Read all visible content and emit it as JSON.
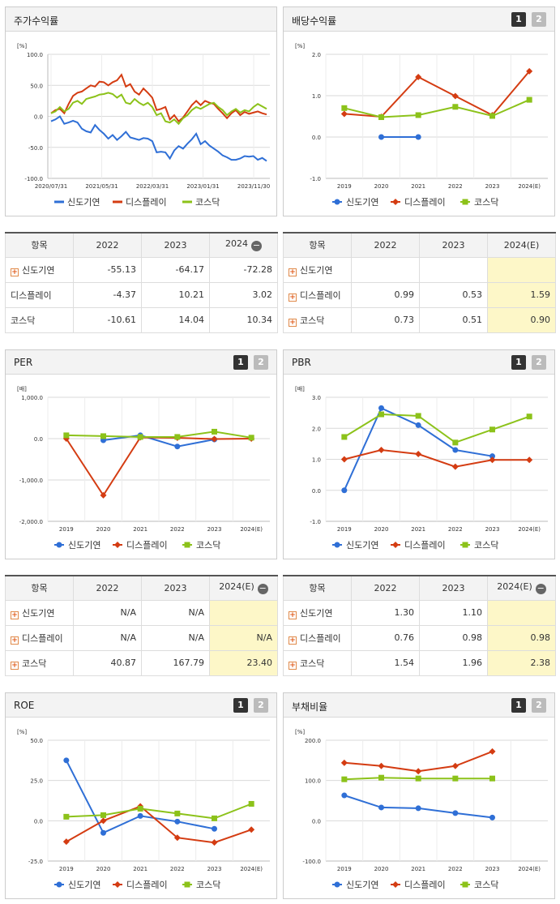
{
  "series_names": [
    "신도기연",
    "디스플레이",
    "코스닥"
  ],
  "colors": {
    "s0": "#2f6fd6",
    "s1": "#d43c12",
    "s2": "#8cc21a"
  },
  "panels": {
    "stock": {
      "title": "주가수익률"
    },
    "dividend": {
      "title": "배당수익률",
      "btn1": "1",
      "btn2": "2"
    },
    "per": {
      "title": "PER",
      "btn1": "1",
      "btn2": "2"
    },
    "pbr": {
      "title": "PBR",
      "btn1": "1",
      "btn2": "2"
    },
    "roe": {
      "title": "ROE",
      "btn1": "1",
      "btn2": "2"
    },
    "debt": {
      "title": "부채비율",
      "btn1": "1",
      "btn2": "2"
    }
  },
  "tables": {
    "stock": {
      "headers": [
        "항목",
        "2022",
        "2023",
        "2024"
      ],
      "rows": [
        {
          "name": "신도기연",
          "vals": [
            "-55.13",
            "-64.17",
            "-72.28"
          ]
        },
        {
          "name": "디스플레이",
          "vals": [
            "-4.37",
            "10.21",
            "3.02"
          ]
        },
        {
          "name": "코스닥",
          "vals": [
            "-10.61",
            "14.04",
            "10.34"
          ]
        }
      ]
    },
    "dividend": {
      "headers": [
        "항목",
        "2022",
        "2023",
        "2024(E)"
      ],
      "rows": [
        {
          "name": "신도기연",
          "vals": [
            "",
            "",
            ""
          ]
        },
        {
          "name": "디스플레이",
          "vals": [
            "0.99",
            "0.53",
            "1.59"
          ]
        },
        {
          "name": "코스닥",
          "vals": [
            "0.73",
            "0.51",
            "0.90"
          ]
        }
      ]
    },
    "per": {
      "headers": [
        "항목",
        "2022",
        "2023",
        "2024(E)"
      ],
      "rows": [
        {
          "name": "신도기연",
          "vals": [
            "N/A",
            "N/A",
            ""
          ]
        },
        {
          "name": "디스플레이",
          "vals": [
            "N/A",
            "N/A",
            "N/A"
          ]
        },
        {
          "name": "코스닥",
          "vals": [
            "40.87",
            "167.79",
            "23.40"
          ]
        }
      ]
    },
    "pbr": {
      "headers": [
        "항목",
        "2022",
        "2023",
        "2024(E)"
      ],
      "rows": [
        {
          "name": "신도기연",
          "vals": [
            "1.30",
            "1.10",
            ""
          ]
        },
        {
          "name": "디스플레이",
          "vals": [
            "0.76",
            "0.98",
            "0.98"
          ]
        },
        {
          "name": "코스닥",
          "vals": [
            "1.54",
            "1.96",
            "2.38"
          ]
        }
      ]
    }
  },
  "chart_data": [
    {
      "id": "stock",
      "type": "line",
      "unit": "[%]",
      "ylim": [
        -100,
        100
      ],
      "yticks": [
        "100.0",
        "50.0",
        "0.0",
        "-50.0",
        "-100.0"
      ],
      "x_labels": [
        "2020/07/31",
        "2021/05/31",
        "2022/03/31",
        "2023/01/31",
        "2023/11/30"
      ],
      "series": [
        {
          "name": "신도기연",
          "values": [
            -8,
            -5,
            0,
            -12,
            -10,
            -7,
            -10,
            -20,
            -24,
            -26,
            -14,
            -22,
            -28,
            -36,
            -30,
            -38,
            -32,
            -25,
            -34,
            -36,
            -38,
            -35,
            -36,
            -40,
            -58,
            -57,
            -58,
            -68,
            -55,
            -48,
            -52,
            -44,
            -37,
            -28,
            -45,
            -40,
            -47,
            -52,
            -57,
            -63,
            -66,
            -70,
            -70,
            -68,
            -64,
            -65,
            -64,
            -70,
            -67,
            -72
          ]
        },
        {
          "name": "디스플레이",
          "values": [
            5,
            10,
            12,
            5,
            20,
            33,
            38,
            40,
            45,
            50,
            48,
            56,
            55,
            50,
            55,
            58,
            67,
            48,
            52,
            40,
            35,
            45,
            38,
            30,
            10,
            12,
            15,
            -5,
            2,
            -8,
            -2,
            8,
            18,
            25,
            18,
            25,
            22,
            20,
            12,
            5,
            -3,
            5,
            10,
            2,
            7,
            4,
            6,
            8,
            5,
            3
          ]
        },
        {
          "name": "코스닥",
          "values": [
            5,
            8,
            15,
            8,
            12,
            22,
            25,
            20,
            28,
            30,
            32,
            35,
            36,
            38,
            36,
            30,
            35,
            22,
            20,
            28,
            22,
            18,
            22,
            15,
            2,
            5,
            -8,
            -10,
            -5,
            -12,
            -3,
            2,
            10,
            15,
            12,
            16,
            20,
            22,
            15,
            10,
            2,
            8,
            12,
            6,
            10,
            8,
            15,
            20,
            16,
            12
          ]
        }
      ]
    },
    {
      "id": "dividend",
      "type": "line",
      "unit": "[%]",
      "ylim": [
        -1,
        2
      ],
      "yticks": [
        "2.0",
        "1.0",
        "0.0",
        "-1.0"
      ],
      "categories": [
        "2019",
        "2020",
        "2021",
        "2022",
        "2023",
        "2024(E)"
      ],
      "series": [
        {
          "name": "신도기연",
          "values": [
            null,
            0.0,
            0.0,
            null,
            null,
            null
          ]
        },
        {
          "name": "디스플레이",
          "values": [
            0.56,
            0.49,
            1.45,
            0.99,
            0.53,
            1.59
          ]
        },
        {
          "name": "코스닥",
          "values": [
            0.7,
            0.48,
            0.53,
            0.73,
            0.51,
            0.9
          ]
        }
      ]
    },
    {
      "id": "per",
      "type": "line",
      "unit": "[배]",
      "ylim": [
        -2000,
        1000
      ],
      "yticks": [
        "1,000.0",
        "0.0",
        "-1,000.0",
        "-2,000.0"
      ],
      "categories": [
        "2019",
        "2020",
        "2021",
        "2022",
        "2023",
        "2024(E)"
      ],
      "series": [
        {
          "name": "신도기연",
          "values": [
            null,
            -40,
            80,
            -190,
            -20,
            null
          ]
        },
        {
          "name": "디스플레이",
          "values": [
            0,
            -1370,
            30,
            20,
            -10,
            0
          ]
        },
        {
          "name": "코스닥",
          "values": [
            80,
            60,
            40,
            40.87,
            167.79,
            23.4
          ]
        }
      ]
    },
    {
      "id": "pbr",
      "type": "line",
      "unit": "[배]",
      "ylim": [
        -1,
        3
      ],
      "yticks": [
        "3.0",
        "2.0",
        "1.0",
        "0.0",
        "-1.0"
      ],
      "categories": [
        "2019",
        "2020",
        "2021",
        "2022",
        "2023",
        "2024(E)"
      ],
      "series": [
        {
          "name": "신도기연",
          "values": [
            0.0,
            2.65,
            2.1,
            1.3,
            1.1,
            null
          ]
        },
        {
          "name": "디스플레이",
          "values": [
            1.0,
            1.3,
            1.17,
            0.76,
            0.98,
            0.98
          ]
        },
        {
          "name": "코스닥",
          "values": [
            1.72,
            2.45,
            2.4,
            1.54,
            1.96,
            2.38
          ]
        }
      ]
    },
    {
      "id": "roe",
      "type": "line",
      "unit": "[%]",
      "ylim": [
        -25,
        50
      ],
      "yticks": [
        "50.0",
        "25.0",
        "0.0",
        "-25.0"
      ],
      "categories": [
        "2019",
        "2020",
        "2021",
        "2022",
        "2023",
        "2024(E)"
      ],
      "series": [
        {
          "name": "신도기연",
          "values": [
            37.5,
            -7.5,
            3,
            -0.5,
            -5,
            null
          ]
        },
        {
          "name": "디스플레이",
          "values": [
            -13,
            0,
            9,
            -10.5,
            -13.5,
            -5.5
          ]
        },
        {
          "name": "코스닥",
          "values": [
            2.5,
            3.5,
            7.5,
            4.5,
            1.5,
            10.5
          ]
        }
      ]
    },
    {
      "id": "debt",
      "type": "line",
      "unit": "[%]",
      "ylim": [
        -100,
        200
      ],
      "yticks": [
        "200.0",
        "100.0",
        "0.0",
        "-100.0"
      ],
      "categories": [
        "2019",
        "2020",
        "2021",
        "2022",
        "2023",
        "2024(E)"
      ],
      "series": [
        {
          "name": "신도기연",
          "values": [
            63,
            33,
            31,
            19,
            8,
            null
          ]
        },
        {
          "name": "디스플레이",
          "values": [
            144,
            136,
            123,
            136,
            172,
            null
          ]
        },
        {
          "name": "코스닥",
          "values": [
            103,
            107,
            105,
            105,
            105,
            null
          ]
        }
      ]
    }
  ]
}
